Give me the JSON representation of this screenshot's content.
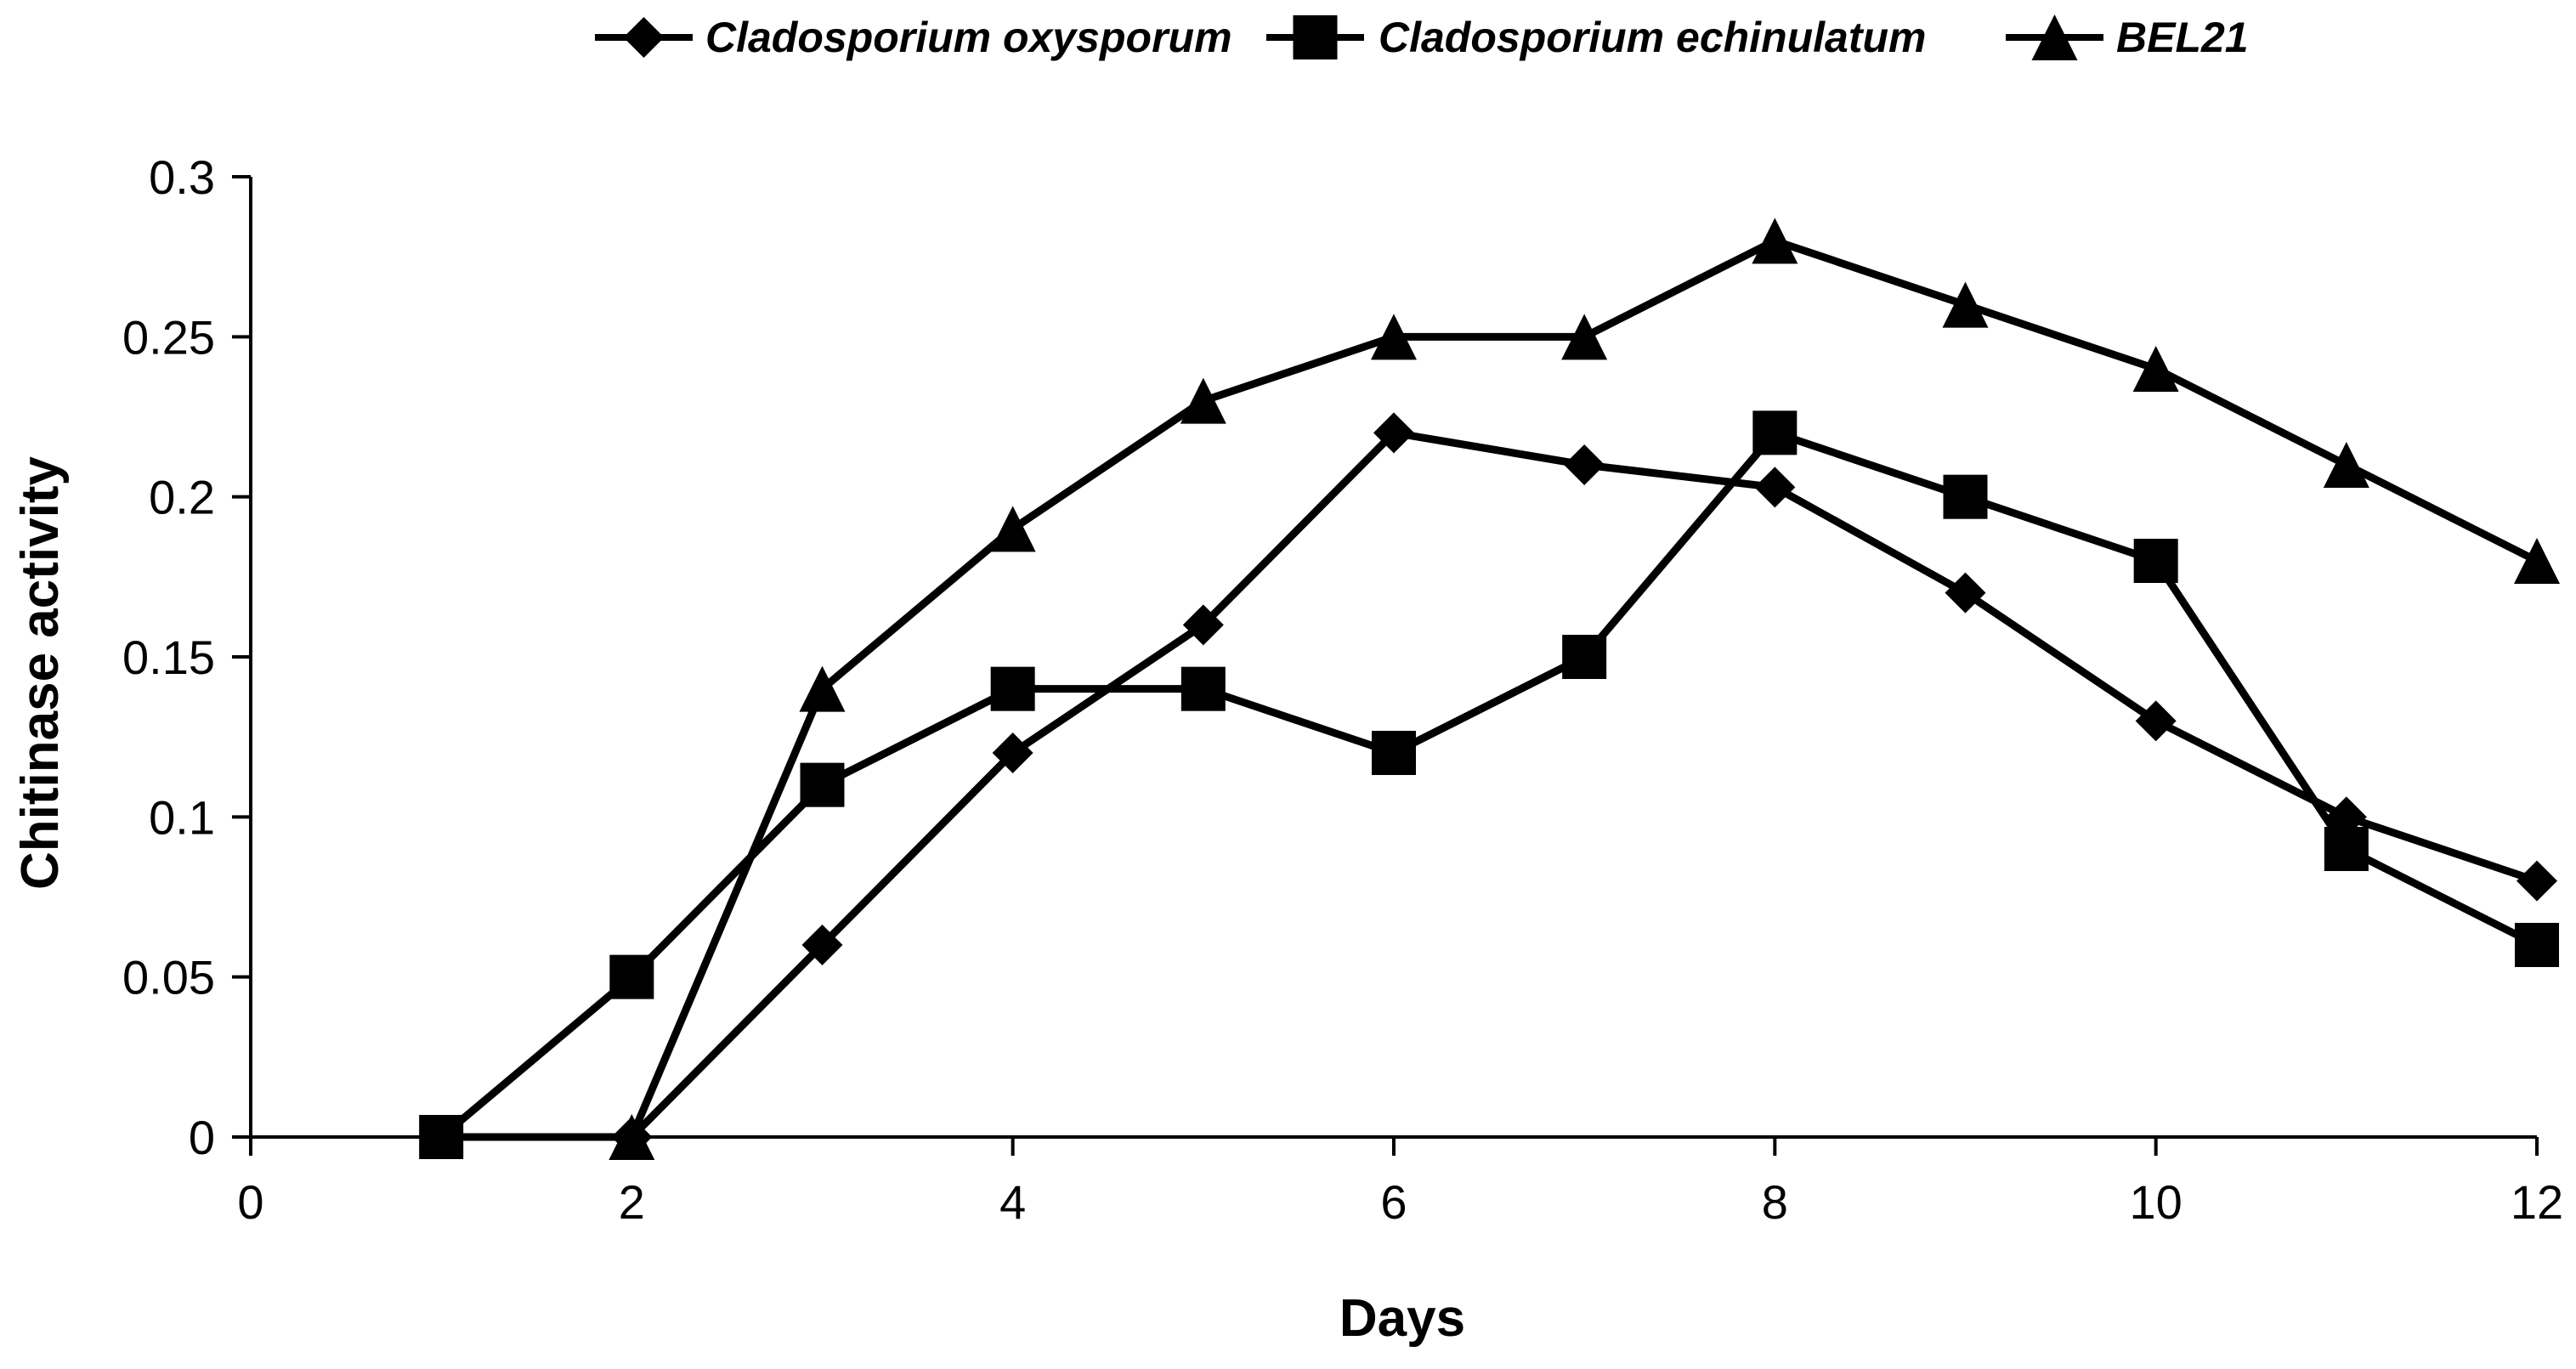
{
  "chart_data": {
    "type": "line",
    "title": "",
    "xlabel": "Days",
    "ylabel": "Chitinase activity",
    "xlim": [
      0,
      12
    ],
    "ylim": [
      0,
      0.3
    ],
    "x_ticks": [
      0,
      2,
      4,
      6,
      8,
      10,
      12
    ],
    "x_tick_labels": [
      "0",
      "2",
      "4",
      "6",
      "8",
      "10",
      "12"
    ],
    "y_ticks": [
      0,
      0.05,
      0.1,
      0.15,
      0.2,
      0.25,
      0.3
    ],
    "y_tick_labels": [
      "0",
      "0.05",
      "0.1",
      "0.15",
      "0.2",
      "0.25",
      "0.3"
    ],
    "grid": false,
    "legend_position": "top",
    "line_color": "#000000",
    "series": [
      {
        "name": "Cladosporium oxysporum",
        "marker": "diamond",
        "x": [
          1,
          2,
          3,
          4,
          5,
          6,
          7,
          8,
          9,
          10,
          11,
          12
        ],
        "values": [
          0,
          0,
          0.06,
          0.12,
          0.16,
          0.22,
          0.21,
          0.203,
          0.17,
          0.13,
          0.1,
          0.08
        ]
      },
      {
        "name": "Cladosporium echinulatum",
        "marker": "square",
        "x": [
          1,
          2,
          3,
          4,
          5,
          6,
          7,
          8,
          9,
          10,
          11,
          12
        ],
        "values": [
          0,
          0.05,
          0.11,
          0.14,
          0.14,
          0.12,
          0.15,
          0.22,
          0.2,
          0.18,
          0.09,
          0.06
        ]
      },
      {
        "name": "BEL21",
        "marker": "triangle",
        "x": [
          2,
          3,
          4,
          5,
          6,
          7,
          8,
          9,
          10,
          11,
          12
        ],
        "values": [
          0,
          0.14,
          0.19,
          0.23,
          0.25,
          0.25,
          0.28,
          0.26,
          0.24,
          0.21,
          0.18
        ]
      }
    ]
  }
}
